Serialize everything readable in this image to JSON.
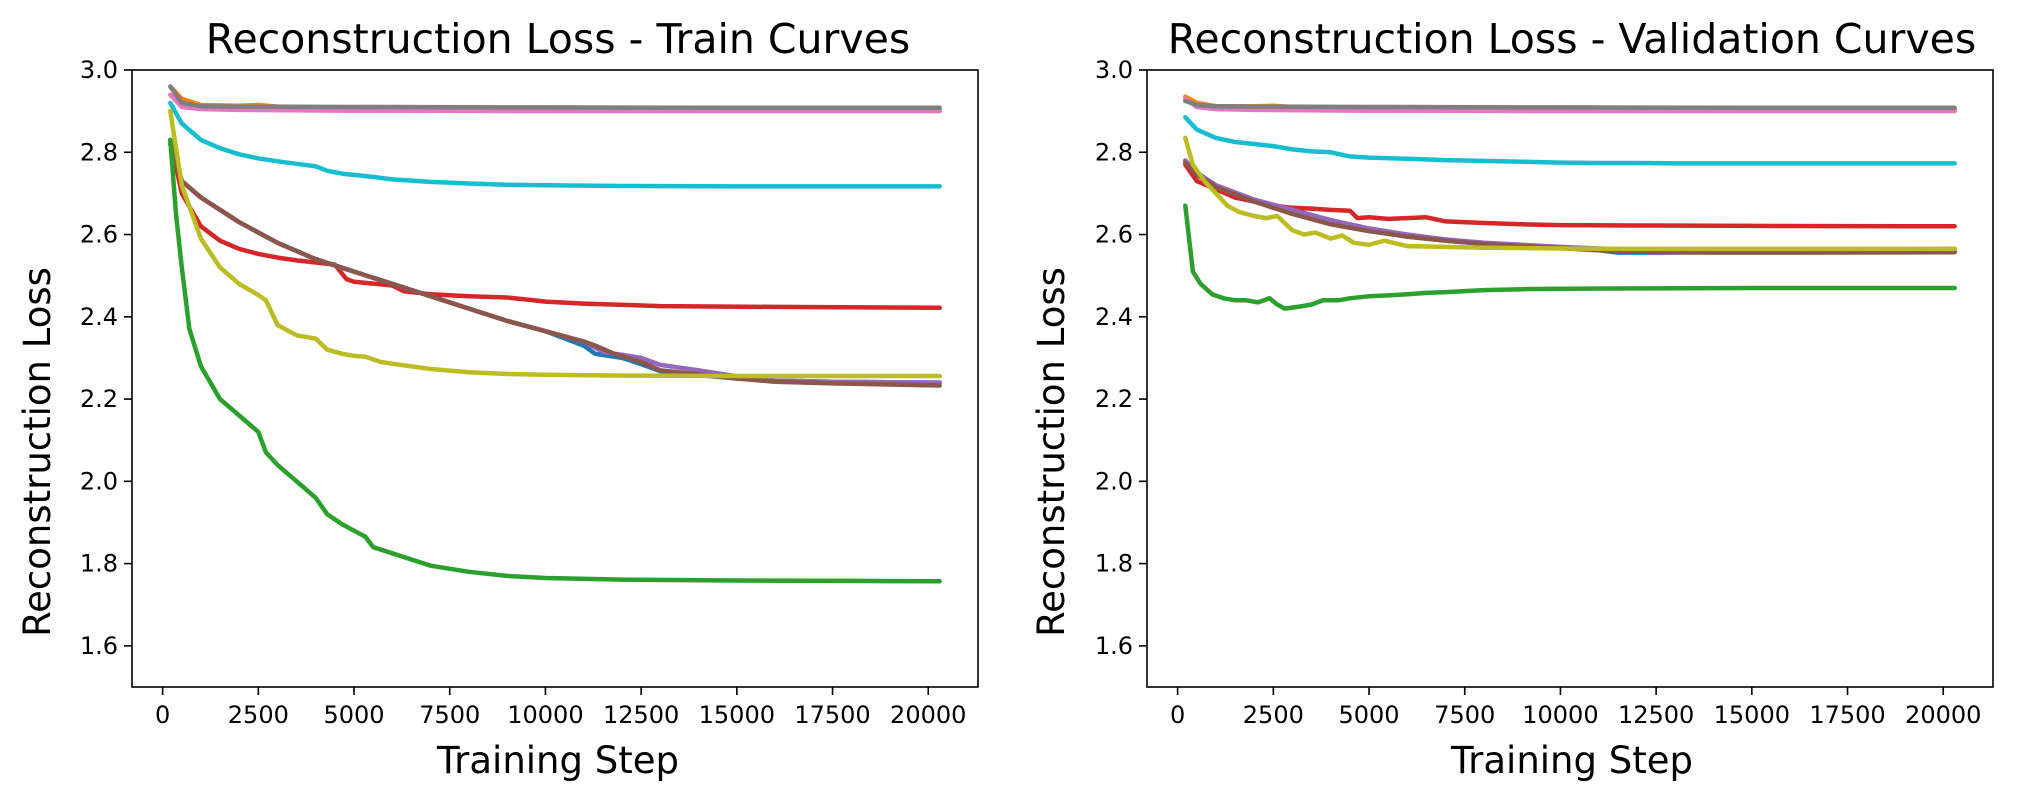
{
  "chart_data": [
    {
      "type": "line",
      "title": "Reconstruction Loss - Train Curves",
      "xlabel": "Training Step",
      "ylabel": "Reconstruction Loss",
      "xlim": [
        -800,
        21300
      ],
      "ylim": [
        1.5,
        3.0
      ],
      "xticks": [
        0,
        2500,
        5000,
        7500,
        10000,
        12500,
        15000,
        17500,
        20000
      ],
      "xtick_labels": [
        "0",
        "2500",
        "5000",
        "7500",
        "10000",
        "12500",
        "15000",
        "17500",
        "20000"
      ],
      "yticks": [
        1.6,
        1.8,
        2.0,
        2.2,
        2.4,
        2.6,
        2.8,
        3.0
      ],
      "ytick_labels": [
        "1.6",
        "1.8",
        "2.0",
        "2.2",
        "2.4",
        "2.6",
        "2.8",
        "3.0"
      ],
      "grid": false,
      "series": [
        {
          "color": "#ff7f0e",
          "x": [
            200,
            500,
            1000,
            2000,
            2500,
            3000,
            5000,
            10000,
            15000,
            20300
          ],
          "y": [
            2.96,
            2.93,
            2.915,
            2.913,
            2.915,
            2.911,
            2.908,
            2.906,
            2.905,
            2.905
          ]
        },
        {
          "color": "#e377c2",
          "x": [
            200,
            500,
            1000,
            2000,
            5000,
            10000,
            15000,
            20300
          ],
          "y": [
            2.94,
            2.91,
            2.905,
            2.903,
            2.901,
            2.9,
            2.9,
            2.9
          ]
        },
        {
          "color": "#7f7f7f",
          "x": [
            200,
            500,
            1000,
            2000,
            5000,
            10000,
            15000,
            20300
          ],
          "y": [
            2.96,
            2.92,
            2.912,
            2.911,
            2.91,
            2.909,
            2.908,
            2.908
          ]
        },
        {
          "color": "#17becf",
          "x": [
            200,
            500,
            1000,
            1500,
            2000,
            2500,
            3000,
            3500,
            4000,
            4300,
            4700,
            5000,
            5500,
            6000,
            7000,
            8000,
            9000,
            10000,
            12000,
            15000,
            18000,
            20300
          ],
          "y": [
            2.92,
            2.87,
            2.83,
            2.81,
            2.795,
            2.785,
            2.778,
            2.772,
            2.766,
            2.755,
            2.748,
            2.745,
            2.74,
            2.734,
            2.728,
            2.724,
            2.721,
            2.72,
            2.718,
            2.717,
            2.717,
            2.717
          ]
        },
        {
          "color": "#d62728",
          "x": [
            200,
            500,
            1000,
            1500,
            2000,
            2500,
            3000,
            3500,
            4000,
            4500,
            4800,
            5000,
            6000,
            6300,
            7000,
            8000,
            9000,
            9500,
            10000,
            11000,
            13000,
            16000,
            20300
          ],
          "y": [
            2.83,
            2.7,
            2.62,
            2.585,
            2.565,
            2.553,
            2.544,
            2.537,
            2.532,
            2.527,
            2.492,
            2.485,
            2.476,
            2.462,
            2.455,
            2.45,
            2.447,
            2.442,
            2.437,
            2.432,
            2.426,
            2.424,
            2.422
          ]
        },
        {
          "color": "#1f77b4",
          "x": [
            200,
            500,
            1000,
            2000,
            3000,
            4000,
            5000,
            6000,
            7000,
            8000,
            9000,
            10000,
            11000,
            11300,
            12000,
            12500,
            13000,
            14000,
            15000,
            16000,
            17500,
            20300
          ],
          "y": [
            2.82,
            2.73,
            2.69,
            2.63,
            2.58,
            2.54,
            2.51,
            2.48,
            2.45,
            2.42,
            2.39,
            2.365,
            2.33,
            2.31,
            2.3,
            2.285,
            2.268,
            2.258,
            2.25,
            2.245,
            2.242,
            2.24
          ]
        },
        {
          "color": "#9467bd",
          "x": [
            200,
            500,
            1000,
            2000,
            3000,
            4000,
            5000,
            6000,
            7000,
            8000,
            9000,
            10000,
            11000,
            11500,
            12500,
            13000,
            14000,
            15000,
            16000,
            17500,
            20300
          ],
          "y": [
            2.82,
            2.73,
            2.69,
            2.63,
            2.58,
            2.54,
            2.51,
            2.48,
            2.45,
            2.42,
            2.39,
            2.365,
            2.34,
            2.315,
            2.3,
            2.283,
            2.27,
            2.255,
            2.245,
            2.242,
            2.24
          ]
        },
        {
          "color": "#8c564b",
          "x": [
            200,
            500,
            1000,
            2000,
            3000,
            4000,
            5000,
            6000,
            7000,
            8000,
            9000,
            10000,
            11000,
            11300,
            11800,
            12500,
            13000,
            14000,
            15000,
            16000,
            17500,
            20300
          ],
          "y": [
            2.82,
            2.73,
            2.69,
            2.63,
            2.58,
            2.54,
            2.51,
            2.48,
            2.45,
            2.42,
            2.39,
            2.365,
            2.34,
            2.33,
            2.31,
            2.29,
            2.27,
            2.26,
            2.25,
            2.242,
            2.238,
            2.233
          ]
        },
        {
          "color": "#bcbd22",
          "x": [
            200,
            500,
            1000,
            1500,
            2000,
            2500,
            2700,
            3000,
            3500,
            4000,
            4300,
            4700,
            5000,
            5300,
            5700,
            6000,
            7000,
            8000,
            9000,
            10000,
            12000,
            15000,
            20300
          ],
          "y": [
            2.9,
            2.72,
            2.59,
            2.52,
            2.48,
            2.453,
            2.44,
            2.38,
            2.355,
            2.347,
            2.32,
            2.31,
            2.305,
            2.303,
            2.29,
            2.286,
            2.273,
            2.265,
            2.261,
            2.259,
            2.257,
            2.256,
            2.256
          ]
        },
        {
          "color": "#2ca02c",
          "x": [
            200,
            350,
            500,
            700,
            1000,
            1500,
            2000,
            2500,
            2700,
            3000,
            3500,
            4000,
            4300,
            4700,
            5000,
            5300,
            5500,
            6000,
            6500,
            7000,
            8000,
            9000,
            10000,
            12000,
            15000,
            18000,
            20300
          ],
          "y": [
            2.83,
            2.65,
            2.52,
            2.37,
            2.28,
            2.2,
            2.16,
            2.12,
            2.07,
            2.04,
            2.0,
            1.96,
            1.92,
            1.895,
            1.88,
            1.865,
            1.84,
            1.825,
            1.81,
            1.795,
            1.78,
            1.77,
            1.765,
            1.761,
            1.759,
            1.758,
            1.757
          ]
        }
      ]
    },
    {
      "type": "line",
      "title": "Reconstruction Loss - Validation Curves",
      "xlabel": "Training Step",
      "ylabel": "Reconstruction Loss",
      "xlim": [
        -800,
        21300
      ],
      "ylim": [
        1.5,
        3.0
      ],
      "xticks": [
        0,
        2500,
        5000,
        7500,
        10000,
        12500,
        15000,
        17500,
        20000
      ],
      "xtick_labels": [
        "0",
        "2500",
        "5000",
        "7500",
        "10000",
        "12500",
        "15000",
        "17500",
        "20000"
      ],
      "yticks": [
        1.6,
        1.8,
        2.0,
        2.2,
        2.4,
        2.6,
        2.8,
        3.0
      ],
      "ytick_labels": [
        "1.6",
        "1.8",
        "2.0",
        "2.2",
        "2.4",
        "2.6",
        "2.8",
        "3.0"
      ],
      "grid": false,
      "series": [
        {
          "color": "#ff7f0e",
          "x": [
            200,
            500,
            1000,
            2000,
            2500,
            3000,
            5000,
            10000,
            15000,
            20300
          ],
          "y": [
            2.935,
            2.92,
            2.912,
            2.912,
            2.913,
            2.91,
            2.908,
            2.906,
            2.905,
            2.905
          ]
        },
        {
          "color": "#e377c2",
          "x": [
            200,
            500,
            1000,
            2000,
            5000,
            10000,
            15000,
            20300
          ],
          "y": [
            2.93,
            2.91,
            2.905,
            2.903,
            2.901,
            2.9,
            2.9,
            2.9
          ]
        },
        {
          "color": "#7f7f7f",
          "x": [
            200,
            500,
            1000,
            2000,
            5000,
            10000,
            15000,
            20300
          ],
          "y": [
            2.925,
            2.915,
            2.912,
            2.911,
            2.91,
            2.909,
            2.908,
            2.908
          ]
        },
        {
          "color": "#17becf",
          "x": [
            200,
            500,
            1000,
            1500,
            2000,
            2500,
            3000,
            3500,
            4000,
            4500,
            5000,
            6000,
            7000,
            8000,
            9000,
            10000,
            11000,
            12000,
            13000,
            15000,
            17000,
            20300
          ],
          "y": [
            2.885,
            2.855,
            2.835,
            2.825,
            2.82,
            2.815,
            2.807,
            2.802,
            2.8,
            2.79,
            2.787,
            2.784,
            2.781,
            2.779,
            2.777,
            2.775,
            2.774,
            2.774,
            2.773,
            2.773,
            2.773,
            2.773
          ]
        },
        {
          "color": "#d62728",
          "x": [
            200,
            500,
            1000,
            1500,
            2000,
            2500,
            3000,
            3500,
            4000,
            4500,
            4700,
            5000,
            5500,
            6000,
            6500,
            7000,
            8000,
            9000,
            10000,
            12000,
            15000,
            20300
          ],
          "y": [
            2.77,
            2.73,
            2.71,
            2.69,
            2.68,
            2.67,
            2.665,
            2.663,
            2.66,
            2.658,
            2.64,
            2.642,
            2.638,
            2.64,
            2.642,
            2.632,
            2.628,
            2.625,
            2.623,
            2.622,
            2.621,
            2.62
          ]
        },
        {
          "color": "#1f77b4",
          "x": [
            200,
            500,
            1000,
            2000,
            3000,
            4000,
            5000,
            6000,
            7000,
            8000,
            9000,
            10000,
            11000,
            11500,
            12500,
            14000,
            16000,
            20300
          ],
          "y": [
            2.78,
            2.75,
            2.72,
            2.68,
            2.655,
            2.63,
            2.61,
            2.595,
            2.585,
            2.578,
            2.572,
            2.568,
            2.562,
            2.556,
            2.556,
            2.557,
            2.558,
            2.56
          ]
        },
        {
          "color": "#9467bd",
          "x": [
            200,
            500,
            1000,
            2000,
            3000,
            4000,
            5000,
            6000,
            7000,
            8000,
            9000,
            10000,
            11000,
            12000,
            14000,
            16000,
            20300
          ],
          "y": [
            2.78,
            2.75,
            2.72,
            2.685,
            2.66,
            2.635,
            2.615,
            2.6,
            2.588,
            2.58,
            2.575,
            2.57,
            2.566,
            2.562,
            2.562,
            2.563,
            2.565
          ]
        },
        {
          "color": "#8c564b",
          "x": [
            200,
            500,
            1000,
            2000,
            3000,
            4000,
            5000,
            6000,
            7000,
            8000,
            9000,
            10000,
            11000,
            12000,
            14000,
            16000,
            20300
          ],
          "y": [
            2.775,
            2.745,
            2.715,
            2.68,
            2.65,
            2.625,
            2.608,
            2.595,
            2.585,
            2.577,
            2.572,
            2.567,
            2.562,
            2.558,
            2.556,
            2.556,
            2.557
          ]
        },
        {
          "color": "#bcbd22",
          "x": [
            200,
            400,
            700,
            1000,
            1300,
            1600,
            2000,
            2300,
            2600,
            3000,
            3300,
            3600,
            4000,
            4300,
            4600,
            5000,
            5400,
            6000,
            7000,
            8000,
            10000,
            12000,
            15000,
            20300
          ],
          "y": [
            2.835,
            2.77,
            2.73,
            2.7,
            2.67,
            2.655,
            2.645,
            2.64,
            2.645,
            2.61,
            2.6,
            2.605,
            2.59,
            2.598,
            2.58,
            2.575,
            2.585,
            2.572,
            2.57,
            2.568,
            2.566,
            2.565,
            2.565,
            2.565
          ]
        },
        {
          "color": "#2ca02c",
          "x": [
            200,
            400,
            600,
            900,
            1200,
            1500,
            1800,
            2100,
            2400,
            2600,
            2800,
            3200,
            3500,
            3800,
            4200,
            4500,
            5000,
            5500,
            6000,
            6500,
            7000,
            8000,
            9000,
            10000,
            12000,
            15000,
            18000,
            20300
          ],
          "y": [
            2.67,
            2.51,
            2.48,
            2.455,
            2.445,
            2.44,
            2.44,
            2.435,
            2.445,
            2.43,
            2.42,
            2.425,
            2.43,
            2.44,
            2.44,
            2.445,
            2.45,
            2.452,
            2.455,
            2.458,
            2.46,
            2.465,
            2.467,
            2.468,
            2.469,
            2.47,
            2.47,
            2.47
          ]
        }
      ]
    }
  ]
}
